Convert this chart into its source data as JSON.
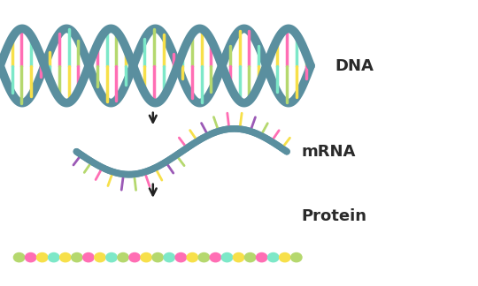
{
  "background_color": "#ffffff",
  "dna_strand_color": "#5a8f9f",
  "dna_base_colors": [
    "#f7e04a",
    "#ff6eb4",
    "#7de8c8",
    "#b5d86e"
  ],
  "mrna_strand_color": "#5a8f9f",
  "mrna_base_colors": [
    "#9b59b6",
    "#b5d86e",
    "#ff6eb4",
    "#f7e04a"
  ],
  "arrow_color": "#222222",
  "label_color": "#2a2a2a",
  "dna_label": "DNA",
  "mrna_label": "mRNA",
  "protein_label": "Protein",
  "label_fontsize": 13,
  "label_fontweight": "bold",
  "protein_colors_seq": [
    "#b5d86e",
    "#ff6eb4",
    "#f7e04a",
    "#7de8c8",
    "#f7e04a",
    "#b5d86e",
    "#ff6eb4",
    "#f7e04a",
    "#7de8c8",
    "#b5d86e",
    "#ff6eb4",
    "#f7e04a",
    "#b5d86e",
    "#7de8c8",
    "#ff6eb4",
    "#f7e04a",
    "#b5d86e",
    "#ff6eb4",
    "#7de8c8",
    "#f7e04a",
    "#b5d86e",
    "#ff6eb4",
    "#7de8c8",
    "#f7e04a",
    "#b5d86e"
  ]
}
